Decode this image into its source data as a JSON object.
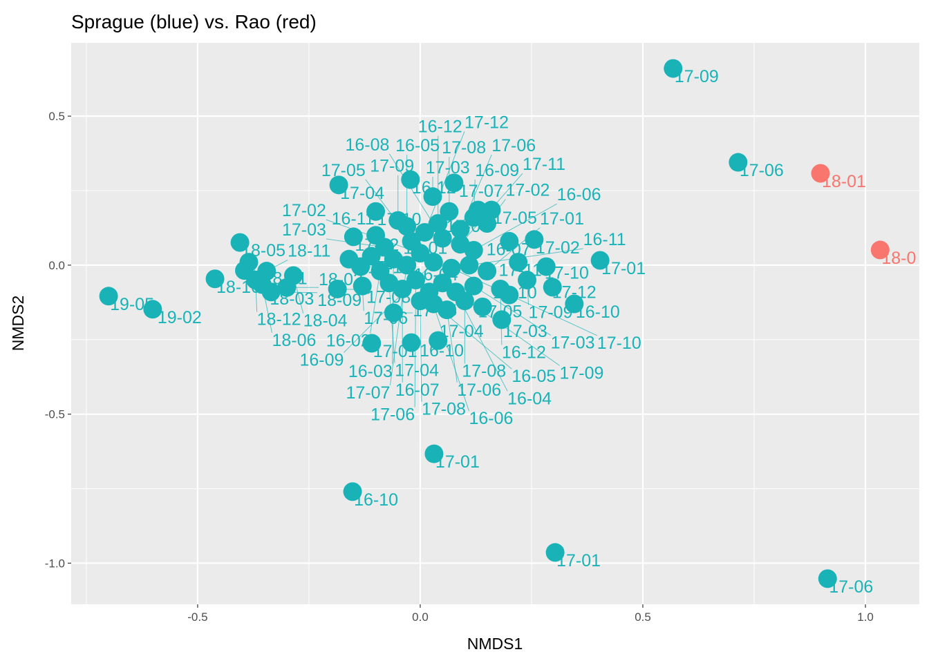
{
  "chart_data": {
    "type": "scatter",
    "title": "Sprague (blue) vs. Rao (red)",
    "xlabel": "NMDS1",
    "ylabel": "NMDS2",
    "xlim": [
      -0.784,
      1.121
    ],
    "ylim": [
      -1.138,
      0.746
    ],
    "xticks": [
      -0.5,
      0.0,
      0.5,
      1.0
    ],
    "xtick_labels": [
      "-0.5",
      "0.0",
      "0.5",
      "1.0"
    ],
    "yticks": [
      0.5,
      0.0,
      -0.5,
      -1.0
    ],
    "ytick_labels": [
      "0.5",
      "0.0",
      "-0.5",
      "-1.0"
    ],
    "grid": true,
    "legend": "none",
    "colors": {
      "Sprague": "#19b3b7",
      "Rao": "#f8766d",
      "panel": "#ebebeb",
      "grid": "#ffffff"
    },
    "series": [
      {
        "name": "Sprague",
        "color": "#19b3b7",
        "points": [
          [
            0.568,
            0.66,
            "17-09"
          ],
          [
            0.714,
            0.345,
            "17-06"
          ],
          [
            0.404,
            0.016,
            "17-01"
          ],
          [
            0.346,
            -0.13,
            "16-10"
          ],
          [
            -0.7,
            -0.104,
            "19-05"
          ],
          [
            -0.601,
            -0.148,
            "19-02"
          ],
          [
            -0.461,
            -0.046,
            "18-10"
          ],
          [
            -0.405,
            0.076,
            "18-05"
          ],
          [
            -0.395,
            -0.018,
            "18-01"
          ],
          [
            -0.385,
            0.01,
            "18-03"
          ],
          [
            -0.37,
            -0.05,
            "18-12"
          ],
          [
            -0.355,
            -0.065,
            "18-06"
          ],
          [
            -0.345,
            -0.02,
            "18-11"
          ],
          [
            -0.335,
            -0.09,
            "18-09"
          ],
          [
            -0.285,
            -0.035,
            "18-04"
          ],
          [
            -0.3,
            -0.075,
            "18-02"
          ],
          [
            -0.183,
            0.269,
            "17-04"
          ],
          [
            -0.186,
            -0.08,
            "17-08"
          ],
          [
            -0.16,
            0.02,
            "17-11"
          ],
          [
            -0.15,
            0.095,
            "17-12"
          ],
          [
            -0.134,
            -0.005,
            "16-04"
          ],
          [
            -0.13,
            -0.07,
            "17-06"
          ],
          [
            -0.1,
            0.18,
            "17-10"
          ],
          [
            -0.1,
            0.1,
            "16-11"
          ],
          [
            -0.022,
            0.287,
            "16-12"
          ],
          [
            0.076,
            0.276,
            "17-07"
          ],
          [
            0.028,
            0.23,
            "17-03"
          ],
          [
            0.065,
            0.18,
            "17-08"
          ],
          [
            0.13,
            0.185,
            "17-04"
          ],
          [
            0.16,
            0.185,
            "17-05"
          ],
          [
            0.12,
            0.16,
            "16-09"
          ],
          [
            0.15,
            0.14,
            "17-02"
          ],
          [
            0.256,
            0.086,
            "17-02"
          ],
          [
            0.2,
            0.08,
            "16-07"
          ],
          [
            0.283,
            -0.005,
            "17-10"
          ],
          [
            0.297,
            -0.074,
            "17-12"
          ],
          [
            0.22,
            0.01,
            "17-11"
          ],
          [
            0.24,
            -0.05,
            "17-09"
          ],
          [
            0.18,
            -0.08,
            "16-12"
          ],
          [
            0.2,
            -0.1,
            "16-10"
          ],
          [
            0.183,
            -0.183,
            "17-03"
          ],
          [
            0.14,
            -0.14,
            "17-05"
          ],
          [
            0.04,
            -0.253,
            "17-04"
          ],
          [
            -0.109,
            -0.262,
            "17-01"
          ],
          [
            -0.02,
            -0.26,
            "16-10"
          ],
          [
            -0.06,
            -0.16,
            "17-05"
          ],
          [
            0.06,
            -0.15,
            "17-06"
          ],
          [
            0.1,
            -0.12,
            "17-08"
          ],
          [
            -0.05,
            0.15,
            "17-09"
          ],
          [
            -0.03,
            0.13,
            "16-05"
          ],
          [
            0.01,
            0.11,
            "17-12"
          ],
          [
            0.05,
            0.09,
            "16-08"
          ],
          [
            0.09,
            0.07,
            "17-11"
          ],
          [
            0.12,
            0.05,
            "16-06"
          ],
          [
            -0.08,
            0.06,
            "17-03"
          ],
          [
            -0.06,
            0.02,
            "16-03"
          ],
          [
            -0.03,
            0.0,
            "17-07"
          ],
          [
            0.0,
            0.04,
            "17-02"
          ],
          [
            0.03,
            0.01,
            "16-09"
          ],
          [
            0.07,
            -0.01,
            "17-10"
          ],
          [
            0.11,
            0.0,
            "16-11"
          ],
          [
            0.15,
            -0.02,
            "17-01"
          ],
          [
            -0.09,
            -0.02,
            "16-02"
          ],
          [
            -0.07,
            -0.06,
            "17-04"
          ],
          [
            -0.04,
            -0.08,
            "16-07"
          ],
          [
            -0.01,
            -0.05,
            "17-06"
          ],
          [
            0.02,
            -0.09,
            "16-06"
          ],
          [
            0.05,
            -0.06,
            "17-09"
          ],
          [
            0.08,
            -0.09,
            "16-04"
          ],
          [
            0.12,
            -0.07,
            "17-03"
          ],
          [
            -0.11,
            0.03,
            "16-01"
          ],
          [
            0.0,
            -0.12,
            "17-08"
          ],
          [
            0.03,
            -0.13,
            "16-05"
          ],
          [
            -0.02,
            0.08,
            "17-05"
          ],
          [
            0.04,
            0.14,
            "16-12"
          ],
          [
            0.09,
            0.12,
            "17-06"
          ]
        ]
      },
      {
        "name": "Rao",
        "color": "#f8766d",
        "points": [
          [
            0.899,
            0.308,
            "18-01"
          ],
          [
            1.033,
            0.051,
            "18-0"
          ]
        ]
      },
      {
        "name": "Sprague-lower",
        "color": "#19b3b7",
        "points": [
          [
            0.031,
            -0.633,
            "17-01"
          ],
          [
            -0.152,
            -0.76,
            "16-10"
          ],
          [
            0.303,
            -0.964,
            "17-01"
          ],
          [
            0.915,
            -1.052,
            "17-06"
          ]
        ]
      }
    ]
  }
}
